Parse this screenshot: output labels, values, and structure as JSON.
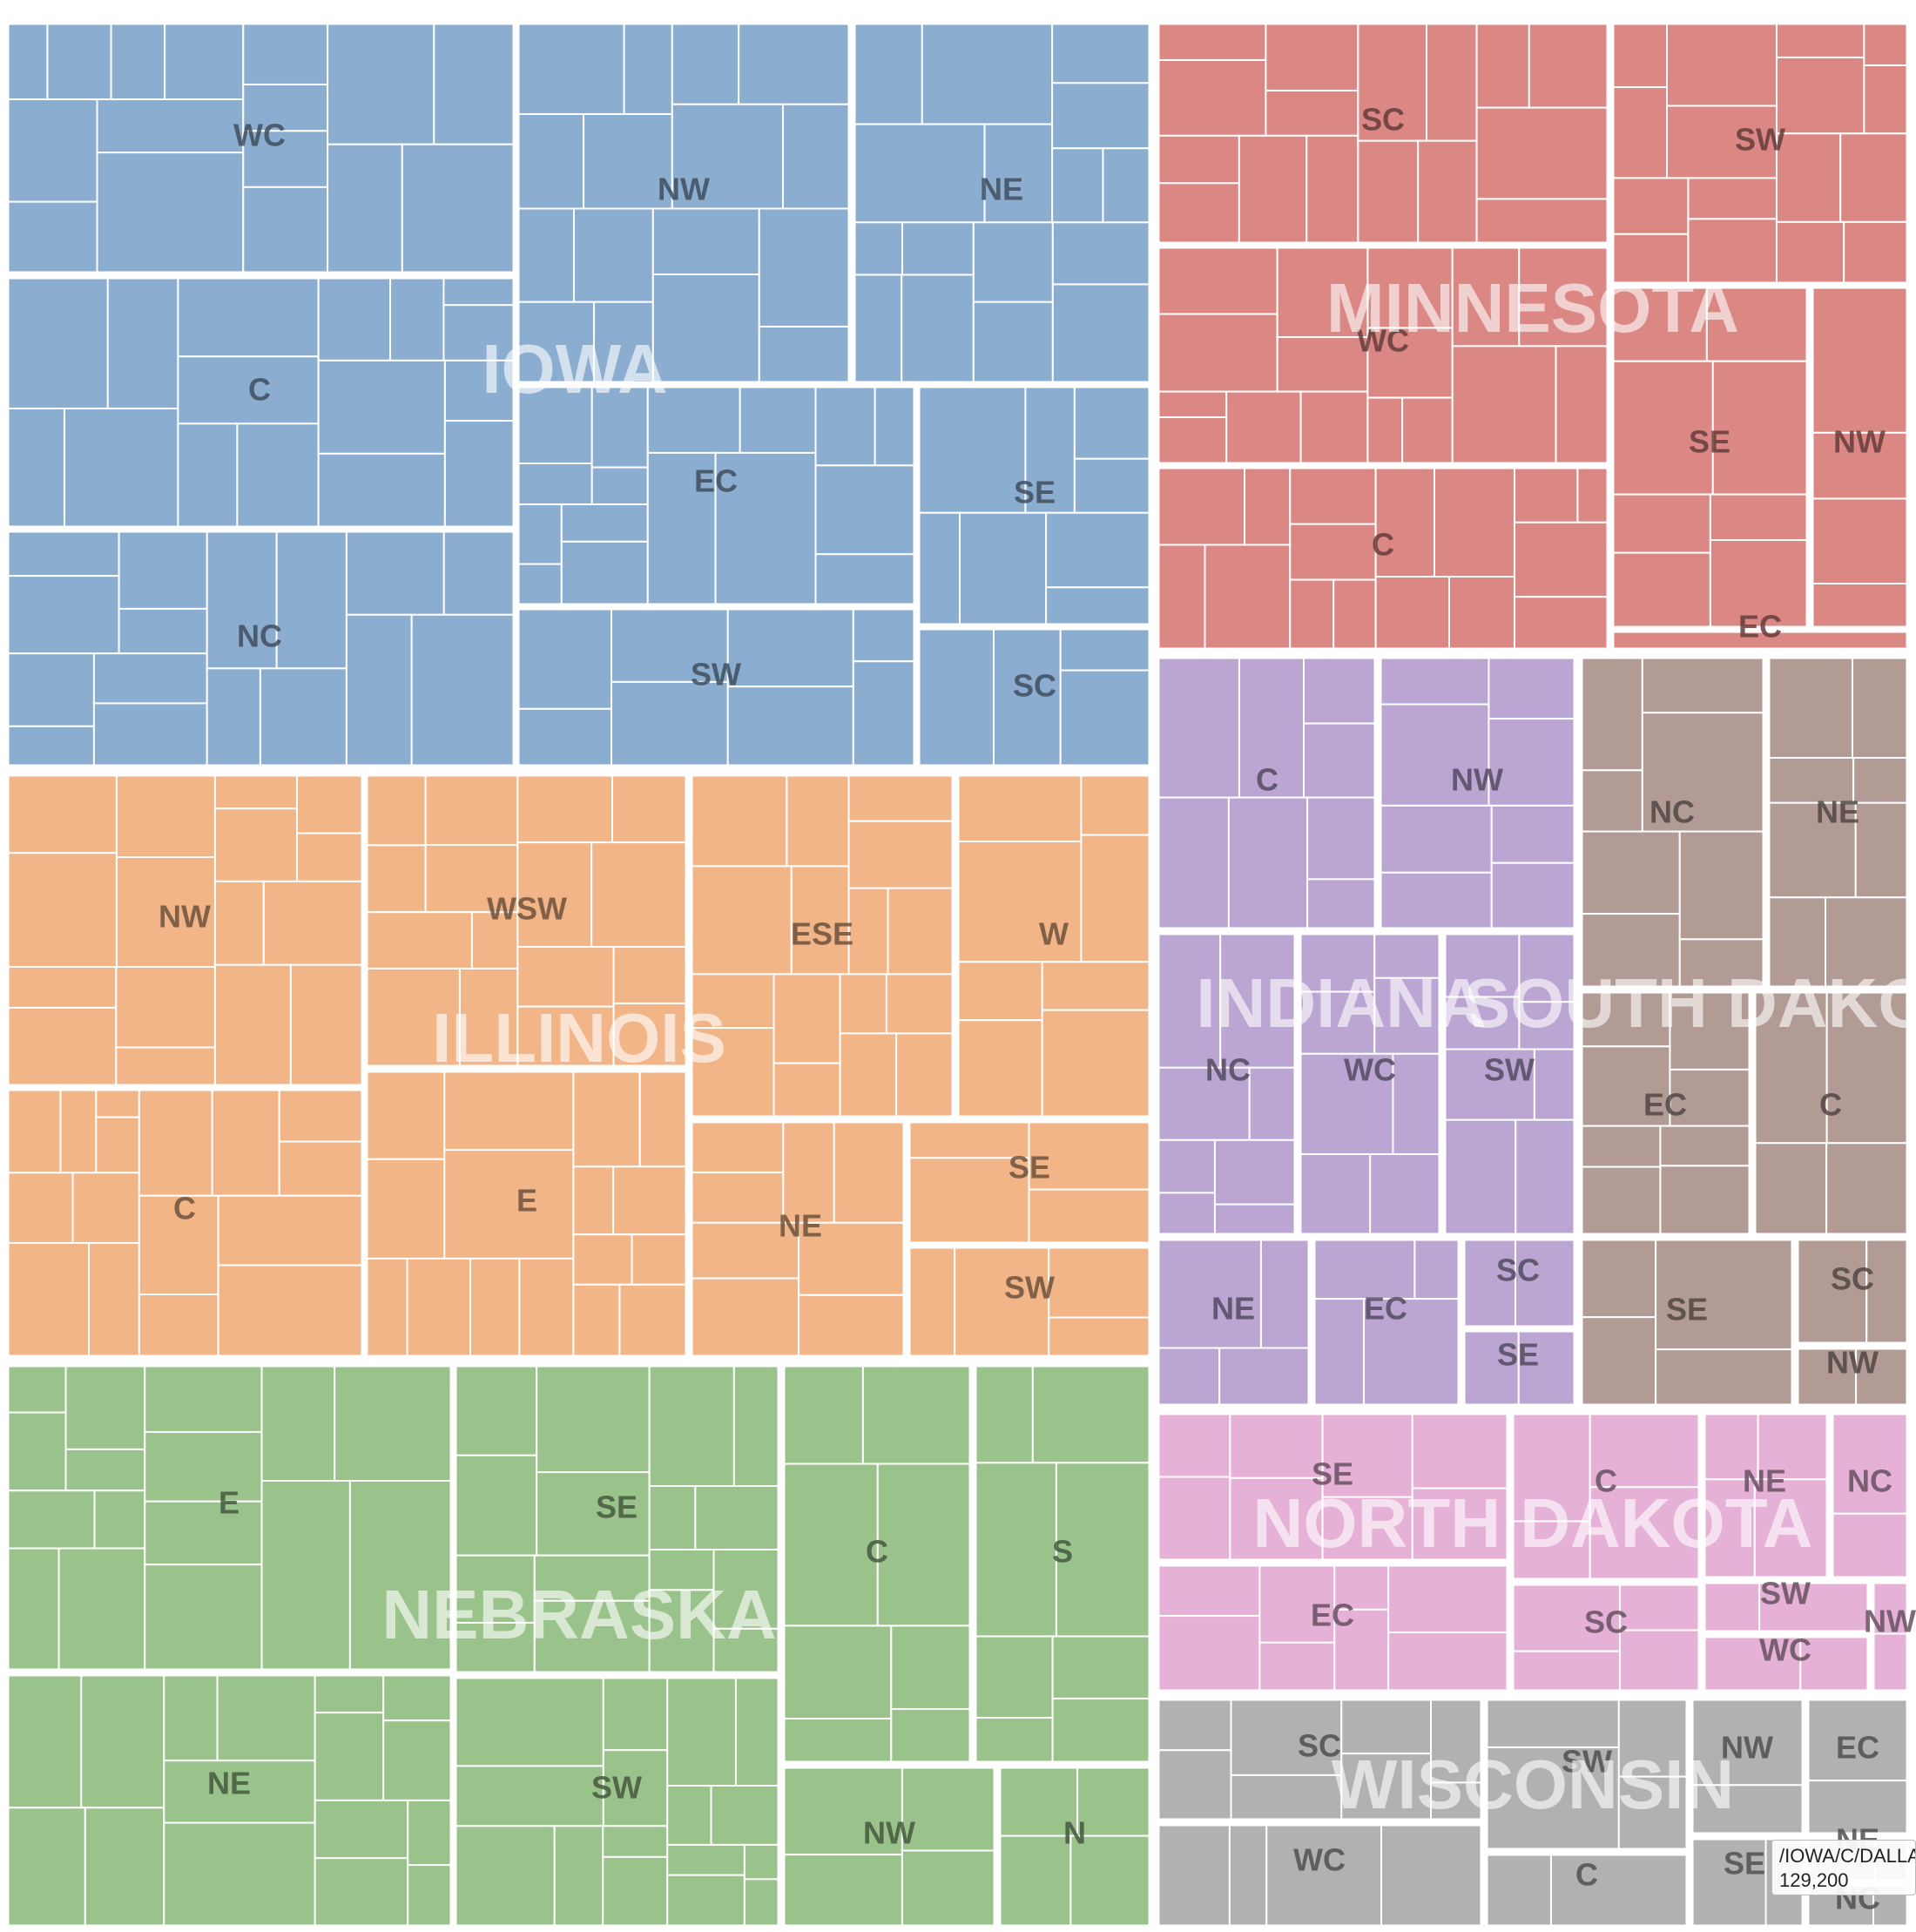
{
  "chart_data": {
    "type": "treemap",
    "states": [
      {
        "name": "IOWA",
        "color": "#8badd0",
        "regions": [
          "WC",
          "NW",
          "NE",
          "C",
          "EC",
          "SE",
          "NC",
          "SW",
          "SC"
        ]
      },
      {
        "name": "MINNESOTA",
        "color": "#db8784",
        "regions": [
          "SC",
          "SW",
          "WC",
          "SE",
          "NW",
          "C",
          "EC"
        ]
      },
      {
        "name": "ILLINOIS",
        "color": "#f2b588",
        "regions": [
          "NW",
          "WSW",
          "ESE",
          "W",
          "C",
          "E",
          "NE",
          "SE",
          "SW"
        ]
      },
      {
        "name": "INDIANA",
        "color": "#bba5d3",
        "regions": [
          "C",
          "NW",
          "NC",
          "WC",
          "SW",
          "NE",
          "EC",
          "SC",
          "SE"
        ]
      },
      {
        "name": "SOUTH DAKOTA",
        "color": "#b39b95",
        "regions": [
          "NC",
          "NE",
          "EC",
          "C",
          "SE",
          "SC",
          "NW"
        ]
      },
      {
        "name": "NEBRASKA",
        "color": "#9ac38b",
        "regions": [
          "E",
          "SE",
          "C",
          "S",
          "NE",
          "SW",
          "NW",
          "N"
        ]
      },
      {
        "name": "NORTH DAKOTA",
        "color": "#e5b1d6",
        "regions": [
          "SE",
          "C",
          "NE",
          "NC",
          "EC",
          "SC",
          "SW",
          "WC",
          "NW"
        ]
      },
      {
        "name": "WISCONSIN",
        "color": "#b1b1b1",
        "regions": [
          "SC",
          "SW",
          "NW",
          "EC",
          "NE",
          "WC",
          "C",
          "SE",
          "NC"
        ]
      }
    ],
    "tooltip": {
      "path": "/IOWA/C/DALLA",
      "value": "129,200"
    }
  }
}
